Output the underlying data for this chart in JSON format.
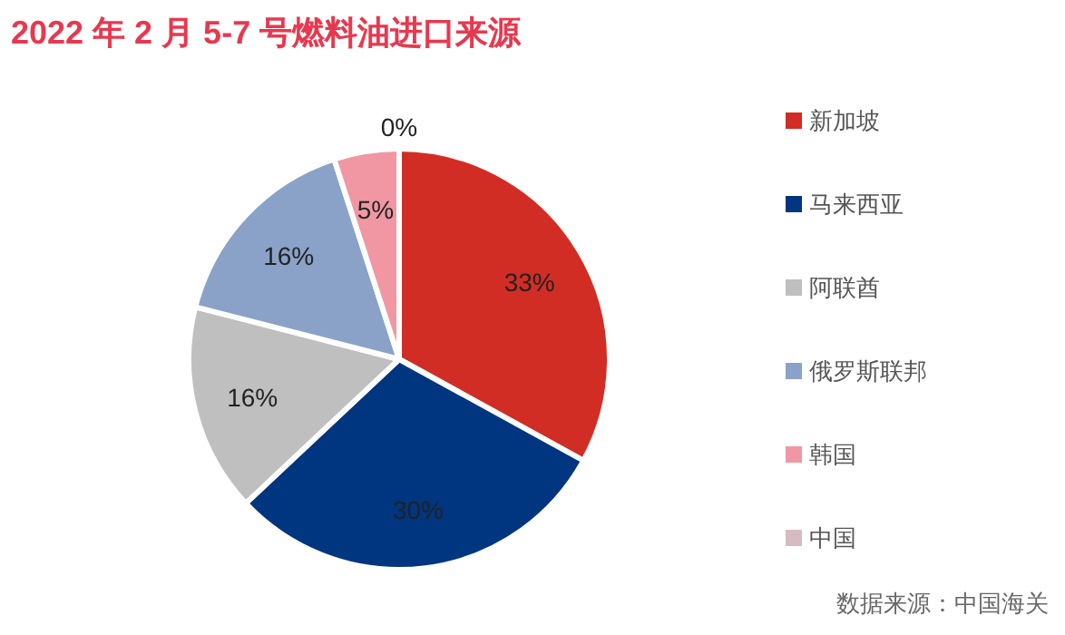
{
  "chart_data": {
    "type": "pie",
    "title": "2022 年 2 月 5-7 号燃料油进口来源",
    "categories": [
      "新加坡",
      "马来西亚",
      "阿联酋",
      "俄罗斯联邦",
      "韩国",
      "中国"
    ],
    "values": [
      33,
      30,
      16,
      16,
      5,
      0
    ],
    "colors": [
      "#d12d24",
      "#003580",
      "#bfbfbf",
      "#8aa2c8",
      "#f097a3",
      "#d6bcbf"
    ],
    "value_labels": [
      "33%",
      "30%",
      "16%",
      "16%",
      "5%",
      "0%"
    ],
    "legend": "right",
    "annotations": [
      "数据来源：中国海关"
    ]
  }
}
